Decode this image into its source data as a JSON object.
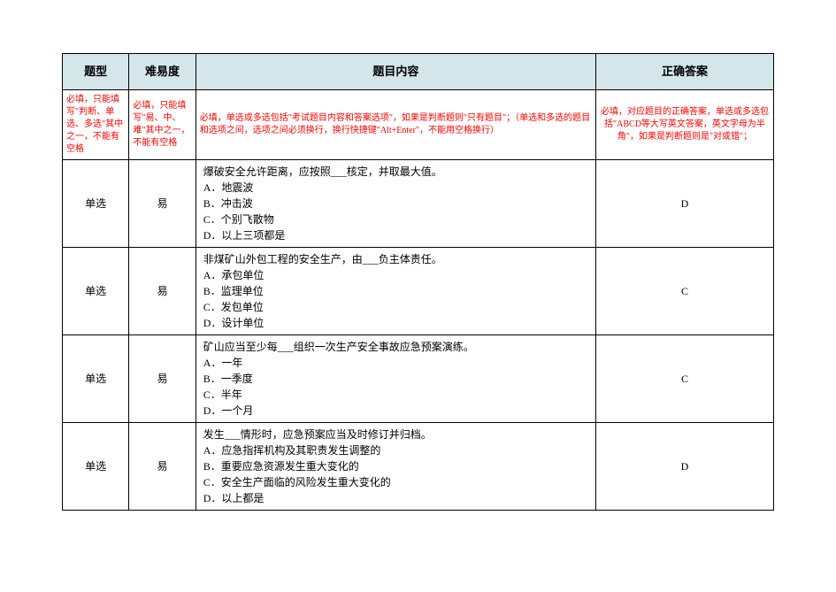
{
  "table": {
    "headers": {
      "type": "题型",
      "difficulty": "难易度",
      "content": "题目内容",
      "answer": "正确答案"
    },
    "instructions": {
      "type": "必填，只能填写\"判断、单选、多选\"其中之一，不能有空格",
      "difficulty": "必填，只能填写\"易、中、难\"其中之一，不能有空格",
      "content": "必填，单选或多选包括\"考试题目内容和答案选项\"，如果是判断题则\"只有题目\"；（单选和多选的题目和选项之间，选项之间必须换行，换行快捷键\"Alt+Enter\"，不能用空格换行）",
      "answer": "必填，对应题目的正确答案，单选或多选包括\"ABCD等大写英文答案，英文字母为半角\"，如果是判断题则是\"对或错\"；"
    },
    "rows": [
      {
        "type": "单选",
        "difficulty": "易",
        "content": "爆破安全允许距离，应按照___核定，并取最大值。\nA．地震波\nB．冲击波\nC．个别飞散物\nD．以上三项都是",
        "answer": "D"
      },
      {
        "type": "单选",
        "difficulty": "易",
        "content": "非煤矿山外包工程的安全生产，由___负主体责任。\nA．承包单位\nB．监理单位\nC．发包单位\nD．设计单位",
        "answer": "C"
      },
      {
        "type": "单选",
        "difficulty": "易",
        "content": "矿山应当至少每___组织一次生产安全事故应急预案演练。\nA．一年\nB．一季度\nC．半年\nD．一个月",
        "answer": "C"
      },
      {
        "type": "单选",
        "difficulty": "易",
        "content": "发生___情形时，应急预案应当及时修订并归档。\nA．应急指挥机构及其职责发生调整的\nB．重要应急资源发生重大变化的\nC．安全生产面临的风险发生重大变化的\nD．以上都是",
        "answer": "D"
      }
    ],
    "styling": {
      "header_bg": "#d4e6ea",
      "instruction_color": "#ff0000",
      "border_color": "#000000",
      "font_size_header": 13,
      "font_size_body": 12,
      "font_size_instruction": 10
    }
  }
}
